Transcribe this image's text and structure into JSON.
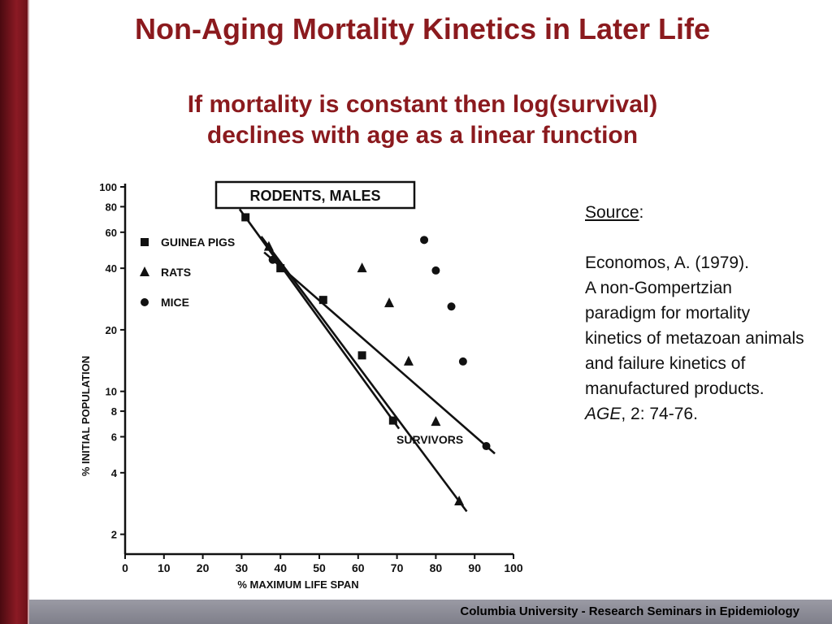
{
  "slide": {
    "title": "Non-Aging Mortality Kinetics in Later Life",
    "subtitle_line1": "If mortality is constant then log(survival)",
    "subtitle_line2": "declines with age as a linear function",
    "footer": "Columbia University - Research Seminars in Epidemiology",
    "colors": {
      "accent": "#8b1a1e",
      "left_bar": "#7a1520",
      "footer_bg": "#8a8a94"
    }
  },
  "source": {
    "label": "Source",
    "colon": ":",
    "citation_line1": "Economos, A. (1979).",
    "citation_line2": "A non-Gompertzian paradigm for mortality kinetics of metazoan animals and failure kinetics of manufactured products.",
    "journal": "AGE",
    "volume_pages": ", 2: 74-76."
  },
  "chart_data": {
    "type": "scatter",
    "title": "RODENTS, MALES",
    "xlabel": "% MAXIMUM LIFE SPAN",
    "ylabel": "% INITIAL POPULATION",
    "xlim": [
      0,
      100
    ],
    "ylim": [
      1.6,
      100
    ],
    "yscale": "log",
    "xticks": [
      0,
      10,
      20,
      30,
      40,
      50,
      60,
      70,
      80,
      90,
      100
    ],
    "yticks": [
      2,
      4,
      6,
      8,
      10,
      20,
      40,
      60,
      80,
      100
    ],
    "annotation": "SURVIVORS",
    "series": [
      {
        "name": "GUINEA PIGS",
        "marker": "square",
        "points": [
          [
            31,
            71
          ],
          [
            40,
            40
          ],
          [
            51,
            28
          ],
          [
            61,
            15
          ],
          [
            69,
            7.2
          ]
        ]
      },
      {
        "name": "RATS",
        "marker": "triangle",
        "points": [
          [
            37,
            51
          ],
          [
            61,
            40
          ],
          [
            68,
            27
          ],
          [
            73,
            14
          ],
          [
            80,
            7.1
          ],
          [
            86,
            2.9
          ]
        ]
      },
      {
        "name": "MICE",
        "marker": "circle",
        "points": [
          [
            38,
            44
          ],
          [
            77,
            55
          ],
          [
            80,
            39
          ],
          [
            84,
            26
          ],
          [
            87,
            14
          ],
          [
            93,
            5.4
          ]
        ]
      }
    ]
  }
}
